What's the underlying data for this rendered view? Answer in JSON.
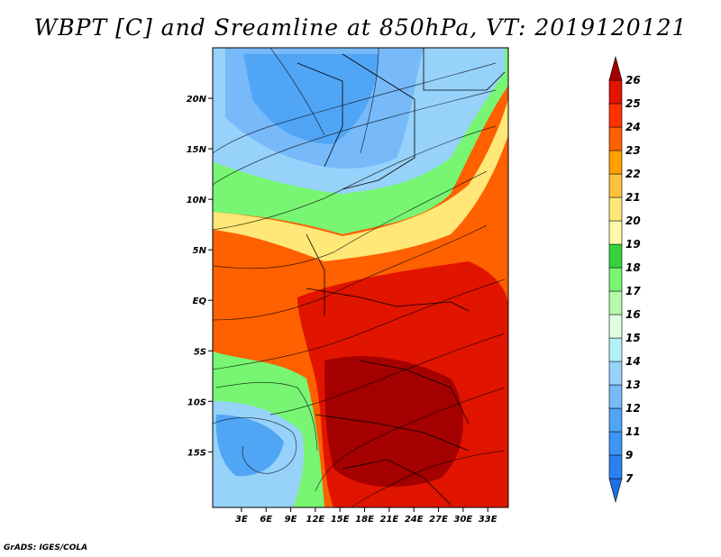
{
  "title": "WBPT [C] and Sreamline at 850hPa, VT: 2019120121",
  "credit": "GrADS: IGES/COLA",
  "map": {
    "lon_range": [
      -0.5,
      35.5
    ],
    "lat_range": [
      -20.5,
      25
    ],
    "lat_ticks": [
      {
        "value": 20,
        "label": "20N"
      },
      {
        "value": 15,
        "label": "15N"
      },
      {
        "value": 10,
        "label": "10N"
      },
      {
        "value": 5,
        "label": "5N"
      },
      {
        "value": 0,
        "label": "EQ"
      },
      {
        "value": -5,
        "label": "5S"
      },
      {
        "value": -10,
        "label": "10S"
      },
      {
        "value": -15,
        "label": "15S"
      }
    ],
    "lon_ticks": [
      {
        "value": 3,
        "label": "3E"
      },
      {
        "value": 6,
        "label": "6E"
      },
      {
        "value": 9,
        "label": "9E"
      },
      {
        "value": 12,
        "label": "12E"
      },
      {
        "value": 15,
        "label": "15E"
      },
      {
        "value": 18,
        "label": "18E"
      },
      {
        "value": 21,
        "label": "21E"
      },
      {
        "value": 24,
        "label": "24E"
      },
      {
        "value": 27,
        "label": "27E"
      },
      {
        "value": 30,
        "label": "30E"
      },
      {
        "value": 33,
        "label": "33E"
      }
    ]
  },
  "colorbar": {
    "labels": [
      "7",
      "9",
      "11",
      "12",
      "13",
      "14",
      "15",
      "16",
      "17",
      "18",
      "19",
      "20",
      "21",
      "22",
      "23",
      "24",
      "25",
      "26"
    ],
    "colors": [
      "#1e6ee6",
      "#2882f0",
      "#3c96f5",
      "#50a5f5",
      "#78b9fa",
      "#96d2fa",
      "#b4f0fa",
      "#e1ffe1",
      "#b4faaa",
      "#78f573",
      "#37d23c",
      "#fffaaa",
      "#ffe878",
      "#ffc03c",
      "#ffa000",
      "#ff6000",
      "#ff3200",
      "#e11400",
      "#a50000"
    ]
  },
  "legend_items": []
}
